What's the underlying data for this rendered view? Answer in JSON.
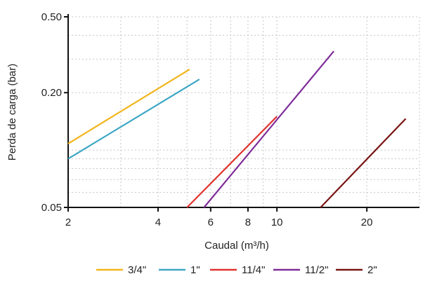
{
  "chart_data": {
    "type": "line",
    "xlabel": "Caudal (m³/h)",
    "ylabel": "Perda de carga (bar)",
    "xscale": "log",
    "yscale": "log",
    "xlim": [
      2,
      30
    ],
    "ylim": [
      0.05,
      0.5
    ],
    "x_ticks": [
      2,
      4,
      6,
      8,
      10,
      20
    ],
    "x_tick_labels": [
      "2",
      "4",
      "6",
      "8",
      "10",
      "20"
    ],
    "y_ticks": [
      0.05,
      0.2,
      0.5
    ],
    "y_tick_labels": [
      "0.05",
      "0.20",
      "0.50"
    ],
    "grid": "minor dotted, light gray",
    "legend_position": "bottom",
    "series": [
      {
        "name": "3/4\"",
        "color": "#F2B61E",
        "points": [
          [
            2.0,
            0.108
          ],
          [
            5.1,
            0.265
          ]
        ]
      },
      {
        "name": "1\"",
        "color": "#3EA7C6",
        "points": [
          [
            2.0,
            0.09
          ],
          [
            5.5,
            0.235
          ]
        ]
      },
      {
        "name": "11/4\"",
        "color": "#E0332E",
        "points": [
          [
            5.0,
            0.05
          ],
          [
            10.0,
            0.15
          ]
        ]
      },
      {
        "name": "11/2\"",
        "color": "#7E2C9A",
        "points": [
          [
            5.7,
            0.05
          ],
          [
            15.5,
            0.33
          ]
        ]
      },
      {
        "name": "2\"",
        "color": "#7A1414",
        "points": [
          [
            14.0,
            0.05
          ],
          [
            27.0,
            0.146
          ]
        ]
      }
    ]
  }
}
